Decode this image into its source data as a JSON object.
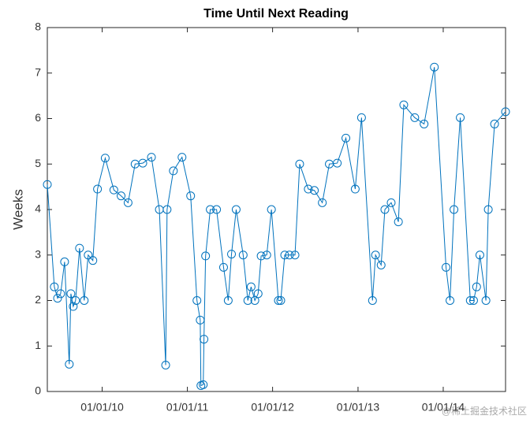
{
  "chart_data": {
    "type": "line",
    "title": "Time Until Next Reading",
    "ylabel": "Weeks",
    "x": [
      "2009-05-11",
      "2009-06-10",
      "2009-06-24",
      "2009-07-07",
      "2009-07-24",
      "2009-08-13",
      "2009-08-20",
      "2009-08-30",
      "2009-09-09",
      "2009-09-26",
      "2009-10-16",
      "2009-11-02",
      "2009-11-22",
      "2009-12-12",
      "2010-01-14",
      "2010-02-20",
      "2010-03-23",
      "2010-04-22",
      "2010-05-22",
      "2010-06-24",
      "2010-07-31",
      "2010-09-03",
      "2010-09-30",
      "2010-10-06",
      "2010-11-02",
      "2010-12-09",
      "2011-01-15",
      "2011-02-11",
      "2011-02-25",
      "2011-02-28",
      "2011-03-10",
      "2011-03-13",
      "2011-03-20",
      "2011-04-09",
      "2011-05-06",
      "2011-06-05",
      "2011-06-25",
      "2011-07-09",
      "2011-07-29",
      "2011-08-28",
      "2011-09-17",
      "2011-10-01",
      "2011-10-17",
      "2011-10-31",
      "2011-11-13",
      "2011-12-07",
      "2011-12-27",
      "2012-01-26",
      "2012-02-05",
      "2012-02-22",
      "2012-03-13",
      "2012-04-06",
      "2012-04-26",
      "2012-06-02",
      "2012-06-28",
      "2012-08-01",
      "2012-08-31",
      "2012-10-04",
      "2012-11-10",
      "2012-12-20",
      "2013-01-16",
      "2013-03-04",
      "2013-03-17",
      "2013-04-10",
      "2013-04-26",
      "2013-05-23",
      "2013-06-23",
      "2013-07-16",
      "2013-09-01",
      "2013-10-11",
      "2013-11-24",
      "2014-01-13",
      "2014-01-30",
      "2014-02-16",
      "2014-03-15",
      "2014-04-27",
      "2014-05-11",
      "2014-05-24",
      "2014-06-07",
      "2014-07-03",
      "2014-07-13",
      "2014-08-09",
      "2014-09-25"
    ],
    "series": [
      {
        "name": "Weeks",
        "color": "#0072bd",
        "values": [
          4.55,
          2.3,
          2.05,
          2.15,
          2.85,
          0.6,
          2.15,
          1.87,
          2.0,
          3.15,
          2.0,
          3.0,
          2.88,
          4.45,
          5.13,
          4.43,
          4.3,
          4.15,
          5.0,
          5.02,
          5.15,
          4.0,
          0.58,
          4.0,
          4.85,
          5.15,
          4.3,
          2.0,
          1.57,
          0.13,
          0.15,
          1.15,
          2.98,
          4.0,
          4.0,
          2.73,
          2.0,
          3.02,
          4.0,
          3.0,
          2.0,
          2.3,
          2.0,
          2.15,
          2.98,
          3.0,
          4.0,
          2.0,
          2.0,
          3.0,
          3.0,
          3.0,
          5.0,
          4.45,
          4.42,
          4.15,
          5.0,
          5.02,
          5.57,
          4.45,
          6.02,
          2.0,
          3.0,
          2.78,
          4.0,
          4.15,
          3.73,
          6.3,
          6.02,
          5.88,
          7.13,
          2.73,
          2.0,
          4.0,
          6.02,
          2.0,
          2.0,
          2.3,
          3.0,
          2.0,
          4.0,
          5.88,
          6.15
        ]
      }
    ],
    "xlim": [
      "2009-05-11",
      "2014-09-25"
    ],
    "xticks": [
      {
        "value": "2010-01-01",
        "label": "01/01/10"
      },
      {
        "value": "2011-01-01",
        "label": "01/01/11"
      },
      {
        "value": "2012-01-01",
        "label": "01/01/12"
      },
      {
        "value": "2013-01-01",
        "label": "01/01/13"
      },
      {
        "value": "2014-01-01",
        "label": "01/01/14"
      }
    ],
    "ylim": [
      0,
      8
    ],
    "yticks": [
      0,
      1,
      2,
      3,
      4,
      5,
      6,
      7,
      8
    ],
    "grid": false
  },
  "watermark": "@稀土掘金技术社区"
}
